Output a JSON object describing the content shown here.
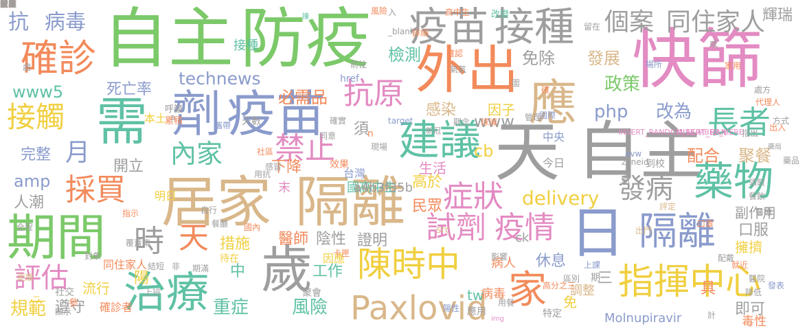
{
  "palette": {
    "green": "#7cc96a",
    "gray": "#9e9e9e",
    "orange": "#f28a5b",
    "blue": "#8a9bcc",
    "pink": "#e38bc2",
    "tan": "#d9b78a",
    "yellow": "#f0cf40",
    "teal": "#5fc1a5"
  },
  "words": [
    {
      "text": "自主",
      "color": "#7cc96a"
    },
    {
      "text": "防疫",
      "color": "#7cc96a"
    },
    {
      "text": "快篩",
      "color": "#e38bc2"
    },
    {
      "text": "天",
      "color": "#9e9e9e"
    },
    {
      "text": "自主",
      "color": "#9e9e9e"
    },
    {
      "text": "居家",
      "color": "#d9b78a"
    },
    {
      "text": "隔離",
      "color": "#d9b78a"
    },
    {
      "text": "外出",
      "color": "#f28a5b"
    },
    {
      "text": "疫苗",
      "color": "#9e9e9e"
    },
    {
      "text": "接種",
      "color": "#9e9e9e"
    },
    {
      "text": "劑",
      "color": "#8a9bcc"
    },
    {
      "text": "疫苗",
      "color": "#8a9bcc"
    },
    {
      "text": "需",
      "color": "#5fc1a5"
    },
    {
      "text": "應",
      "color": "#d9b78a"
    },
    {
      "text": "日",
      "color": "#8a9bcc"
    },
    {
      "text": "期間",
      "color": "#7cc96a"
    },
    {
      "text": "歲",
      "color": "#9e9e9e"
    },
    {
      "text": "治療",
      "color": "#5fc1a5"
    },
    {
      "text": "確診",
      "color": "#f28a5b"
    },
    {
      "text": "建議",
      "color": "#5fc1a5"
    },
    {
      "text": "藥物",
      "color": "#5fc1a5"
    },
    {
      "text": "指揮中心",
      "color": "#f0cf40"
    },
    {
      "text": "陳時中",
      "color": "#f0cf40"
    },
    {
      "text": "隔離",
      "color": "#8a9bcc"
    },
    {
      "text": "長者",
      "color": "#5fc1a5"
    },
    {
      "text": "個案",
      "color": "#9e9e9e"
    },
    {
      "text": "同住家人",
      "color": "#9e9e9e"
    },
    {
      "text": "家",
      "color": "#f28a5b"
    },
    {
      "text": "Paxlovid",
      "color": "#d9b78a"
    },
    {
      "text": "試劑",
      "color": "#e38bc2"
    },
    {
      "text": "疫情",
      "color": "#e38bc2"
    },
    {
      "text": "禁止",
      "color": "#e38bc2"
    },
    {
      "text": "症狀",
      "color": "#e38bc2"
    },
    {
      "text": "抗原",
      "color": "#e38bc2"
    },
    {
      "text": "內家",
      "color": "#5fc1a5"
    },
    {
      "text": "採買",
      "color": "#f28a5b"
    },
    {
      "text": "接觸",
      "color": "#f0cf40"
    },
    {
      "text": "評估",
      "color": "#e38bc2"
    },
    {
      "text": "發病",
      "color": "#9e9e9e"
    },
    {
      "text": "時",
      "color": "#9e9e9e"
    },
    {
      "text": "天",
      "color": "#f28a5b"
    },
    {
      "text": "抗",
      "color": "#8a9bcc"
    },
    {
      "text": "病毒",
      "color": "#8a9bcc"
    },
    {
      "text": "technews",
      "color": "#8a9bcc"
    },
    {
      "text": "必需品",
      "color": "#f28a5b"
    },
    {
      "text": "www5",
      "color": "#5fc1a5"
    },
    {
      "text": "死亡率",
      "color": "#8a9bcc"
    },
    {
      "text": "檢測",
      "color": "#5fc1a5"
    },
    {
      "text": "免除",
      "color": "#9e9e9e"
    },
    {
      "text": "發展",
      "color": "#d9b78a"
    },
    {
      "text": "政策",
      "color": "#7cc96a"
    },
    {
      "text": "php",
      "color": "#8a9bcc"
    },
    {
      "text": "改為",
      "color": "#8a9bcc"
    },
    {
      "text": "www",
      "color": "#9e9e9e"
    },
    {
      "text": "感染",
      "color": "#d9b78a"
    },
    {
      "text": "因子",
      "color": "#f0cf40"
    },
    {
      "text": "配合",
      "color": "#f28a5b"
    },
    {
      "text": "聚餐",
      "color": "#d9b78a"
    },
    {
      "text": "delivery",
      "color": "#f0cf40"
    },
    {
      "text": "月",
      "color": "#8a9bcc"
    },
    {
      "text": "完整",
      "color": "#8a9bcc"
    },
    {
      "text": "開立",
      "color": "#9e9e9e"
    },
    {
      "text": "amp",
      "color": "#8a9bcc"
    },
    {
      "text": "人潮",
      "color": "#9e9e9e"
    },
    {
      "text": "規範",
      "color": "#f0cf40"
    },
    {
      "text": "遵守",
      "color": "#9e9e9e"
    },
    {
      "text": "措施",
      "color": "#f0cf40"
    },
    {
      "text": "醫師",
      "color": "#f28a5b"
    },
    {
      "text": "陰性",
      "color": "#9e9e9e"
    },
    {
      "text": "證明",
      "color": "#9e9e9e"
    },
    {
      "text": "高於",
      "color": "#f0cf40"
    },
    {
      "text": "民眾",
      "color": "#f28a5b"
    },
    {
      "text": "口服",
      "color": "#9e9e9e"
    },
    {
      "text": "副作用",
      "color": "#9e9e9e"
    },
    {
      "text": "擁擠",
      "color": "#f0cf40"
    },
    {
      "text": "休息",
      "color": "#8a9bcc"
    },
    {
      "text": "病人",
      "color": "#f28a5b"
    },
    {
      "text": "重症",
      "color": "#5fc1a5"
    },
    {
      "text": "風險",
      "color": "#5fc1a5"
    },
    {
      "text": "工作",
      "color": "#5fc1a5"
    },
    {
      "text": "中",
      "color": "#5fc1a5"
    },
    {
      "text": "tw",
      "color": "#5fc1a5"
    },
    {
      "text": "cb",
      "color": "#f0cf40"
    },
    {
      "text": "生活",
      "color": "#e38bc2"
    },
    {
      "text": "須",
      "color": "#9e9e9e"
    },
    {
      "text": "Molnupiravir",
      "color": "#8a9bcc"
    },
    {
      "text": "即可",
      "color": "#9e9e9e"
    },
    {
      "text": "毒性",
      "color": "#f28a5b"
    },
    {
      "text": "調整",
      "color": "#d9b78a"
    },
    {
      "text": "免",
      "color": "#f0cf40"
    },
    {
      "text": "具",
      "color": "#f28a5b"
    },
    {
      "text": "病毒",
      "color": "#f28a5b"
    },
    {
      "text": "流行",
      "color": "#f0cf40"
    },
    {
      "text": "陽",
      "color": "#f0cf40"
    },
    {
      "text": "同住家人",
      "color": "#f28a5b"
    },
    {
      "text": "國高中生",
      "color": "#5fc1a5"
    },
    {
      "text": "台灣",
      "color": "#8a9bcc"
    },
    {
      "text": "下降",
      "color": "#f28a5b"
    },
    {
      "text": "末",
      "color": "#e38bc2"
    },
    {
      "text": "a4b3f35b",
      "color": "#9e9e9e"
    },
    {
      "text": "中央",
      "color": "#8a9bcc"
    },
    {
      "text": "今日",
      "color": "#9e9e9e"
    },
    {
      "text": "三",
      "color": "#9e9e9e"
    },
    {
      "text": "因應",
      "color": "#f0cf40"
    },
    {
      "text": "確診者",
      "color": "#f28a5b"
    },
    {
      "text": "明日",
      "color": "#f0cf40"
    },
    {
      "text": "輝瑞",
      "color": "#9e9e9e"
    },
    {
      "text": "接種",
      "color": "#5fc1a5"
    },
    {
      "text": "本土",
      "color": "#f0cf40"
    },
    {
      "text": "n",
      "color": "#f28a5b"
    },
    {
      "text": "ck",
      "color": "#9e9e9e"
    },
    {
      "text": "href",
      "color": "#8a9bcc"
    },
    {
      "text": "_blank",
      "color": "#9e9e9e"
    },
    {
      "text": "img",
      "color": "#e38bc2"
    },
    {
      "text": "INSERT_RANDOM_NUMBER_HERE",
      "color": "#e38bc2"
    },
    {
      "text": "INSERT_RAN",
      "color": "#e38bc2"
    },
    {
      "text": "target",
      "color": "#8a9bcc"
    },
    {
      "text": "zoneid",
      "color": "#9e9e9e"
    },
    {
      "text": "src",
      "color": "#d9b78a"
    },
    {
      "text": "avw",
      "color": "#8a9bcc"
    },
    {
      "text": "a",
      "color": "#9e9e9e"
    },
    {
      "text": "入",
      "color": "#9e9e9e"
    },
    {
      "text": "撞",
      "color": "#5fc1a5"
    },
    {
      "text": "高中生",
      "color": "#f28a5b"
    },
    {
      "text": "風險",
      "color": "#f28a5b"
    },
    {
      "text": "留在",
      "color": "#9e9e9e"
    },
    {
      "text": "改變",
      "color": "#5fc1a5"
    },
    {
      "text": "前往",
      "color": "#9e9e9e"
    },
    {
      "text": "確認",
      "color": "#f28a5b"
    },
    {
      "text": "場所",
      "color": "#8a9bcc"
    },
    {
      "text": "家用",
      "color": "#f28a5b"
    },
    {
      "text": "處方",
      "color": "#9e9e9e"
    },
    {
      "text": "代理人",
      "color": "#f28a5b"
    },
    {
      "text": "方式",
      "color": "#9e9e9e"
    },
    {
      "text": "藥局",
      "color": "#9e9e9e"
    },
    {
      "text": "醫院",
      "color": "#9e9e9e"
    },
    {
      "text": "發表",
      "color": "#8a9bcc"
    },
    {
      "text": "配戴",
      "color": "#9e9e9e"
    },
    {
      "text": "就近",
      "color": "#f28a5b"
    },
    {
      "text": "上課",
      "color": "#8a9bcc"
    },
    {
      "text": "口罩",
      "color": "#f28a5b"
    },
    {
      "text": "出門",
      "color": "#d9b78a"
    },
    {
      "text": "高分之三",
      "color": "#f28a5b"
    },
    {
      "text": "陽性",
      "color": "#8a9bcc"
    },
    {
      "text": "影響",
      "color": "#9e9e9e"
    },
    {
      "text": "卡匣",
      "color": "#f28a5b"
    },
    {
      "text": "期滿",
      "color": "#9e9e9e"
    },
    {
      "text": "待在",
      "color": "#f0cf40"
    },
    {
      "text": "非",
      "color": "#9e9e9e"
    },
    {
      "text": "結短",
      "color": "#9e9e9e"
    },
    {
      "text": "上班",
      "color": "#9e9e9e"
    },
    {
      "text": "自行",
      "color": "#9e9e9e"
    },
    {
      "text": "餐廳",
      "color": "#9e9e9e"
    },
    {
      "text": "國內",
      "color": "#f28a5b"
    },
    {
      "text": "覆蓋率",
      "color": "#9e9e9e"
    },
    {
      "text": "對象",
      "color": "#9e9e9e"
    },
    {
      "text": "社區",
      "color": "#f28a5b"
    },
    {
      "text": "感冒",
      "color": "#9e9e9e"
    },
    {
      "text": "效果",
      "color": "#f28a5b"
    },
    {
      "text": "同意",
      "color": "#9e9e9e"
    },
    {
      "text": "確實",
      "color": "#9e9e9e"
    },
    {
      "text": "管理",
      "color": "#9e9e9e"
    },
    {
      "text": "指示",
      "color": "#f28a5b"
    },
    {
      "text": "全程",
      "color": "#9e9e9e"
    },
    {
      "text": "社交",
      "color": "#9e9e9e"
    },
    {
      "text": "距離",
      "color": "#d9b78a"
    },
    {
      "text": "二",
      "color": "#f0cf40"
    },
    {
      "text": "參",
      "color": "#f28a5b"
    },
    {
      "text": "顯示",
      "color": "#9e9e9e"
    },
    {
      "text": "用抗",
      "color": "#9e9e9e"
    },
    {
      "text": "聚會",
      "color": "#9e9e9e"
    },
    {
      "text": "應用",
      "color": "#9e9e9e"
    },
    {
      "text": "特定",
      "color": "#9e9e9e"
    },
    {
      "text": "區別",
      "color": "#9e9e9e"
    },
    {
      "text": "用餐",
      "color": "#9e9e9e"
    },
    {
      "text": "期",
      "color": "#9e9e9e"
    },
    {
      "text": "計",
      "color": "#9e9e9e"
    },
    {
      "text": "詳細",
      "color": "#f28a5b"
    },
    {
      "text": "呼籲",
      "color": "#9e9e9e"
    },
    {
      "text": "累積",
      "color": "#f28a5b"
    },
    {
      "text": "攜帶",
      "color": "#8a9bcc"
    },
    {
      "text": "天數",
      "color": "#9e9e9e"
    },
    {
      "text": "處",
      "color": "#9e9e9e"
    },
    {
      "text": "新冠",
      "color": "#9e9e9e"
    },
    {
      "text": "球減",
      "color": "#f28a5b"
    },
    {
      "text": "國際",
      "color": "#8a9bcc"
    },
    {
      "text": "確",
      "color": "#f28a5b"
    },
    {
      "text": "現場",
      "color": "#9e9e9e"
    },
    {
      "text": "氣氣",
      "color": "#9e9e9e"
    },
    {
      "text": "到校",
      "color": "#9e9e9e"
    },
    {
      "text": "劑",
      "color": "#9e9e9e"
    },
    {
      "text": "成",
      "color": "#9e9e9e"
    },
    {
      "text": "評定",
      "color": "#d9b78a"
    },
    {
      "text": "出入",
      "color": "#f28a5b"
    },
    {
      "text": "圍",
      "color": "#9e9e9e"
    },
    {
      "text": "藥品",
      "color": "#9e9e9e"
    },
    {
      "text": "觀念",
      "color": "#9e9e9e"
    },
    {
      "text": "降低",
      "color": "#9e9e9e"
    },
    {
      "text": "醫療",
      "color": "#9e9e9e"
    },
    {
      "text": "指出",
      "color": "#9e9e9e"
    },
    {
      "text": "領取",
      "color": "#9e9e9e"
    },
    {
      "text": "餐飲",
      "color": "#9e9e9e"
    },
    {
      "text": "經症",
      "color": "#f28a5b"
    },
    {
      "text": "效益",
      "color": "#f28a5b"
    },
    {
      "text": "免疫",
      "color": "#f28a5b"
    },
    {
      "text": "一般",
      "color": "#9e9e9e"
    },
    {
      "text": "就醫",
      "color": "#9e9e9e"
    },
    {
      "text": "服用",
      "color": "#9e9e9e"
    },
    {
      "text": "取藥",
      "color": "#9e9e9e"
    },
    {
      "text": "視訊",
      "color": "#9e9e9e"
    }
  ]
}
